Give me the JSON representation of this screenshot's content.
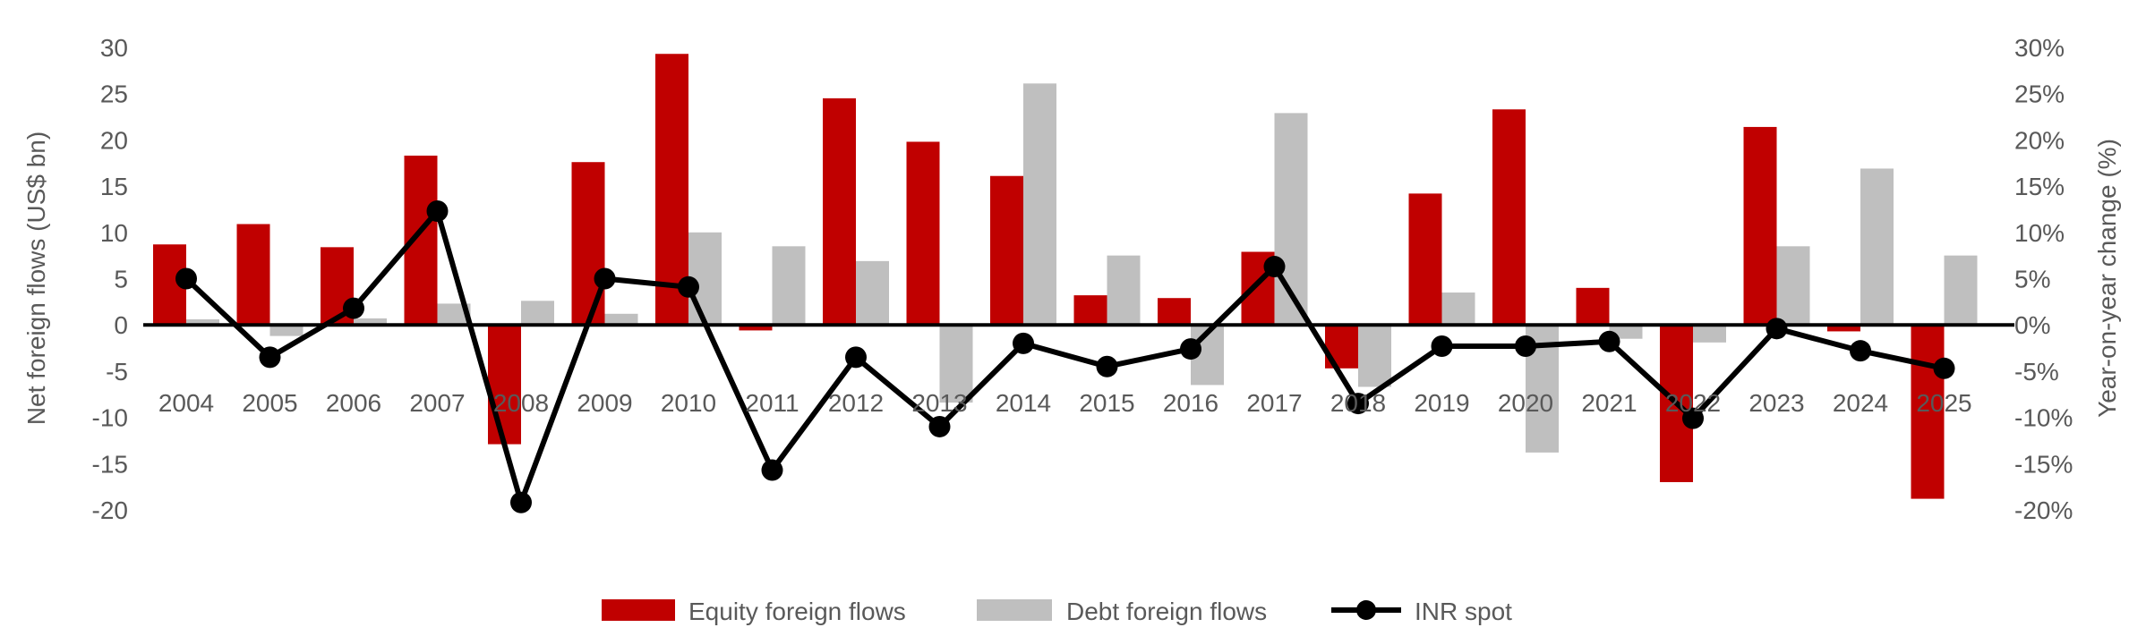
{
  "chart_data": {
    "type": "bar+line",
    "categories": [
      "2004",
      "2005",
      "2006",
      "2007",
      "2008",
      "2009",
      "2010",
      "2011",
      "2012",
      "2013",
      "2014",
      "2015",
      "2016",
      "2017",
      "2018",
      "2019",
      "2020",
      "2021",
      "2022",
      "2023",
      "2024",
      "2025"
    ],
    "series": [
      {
        "name": "Equity foreign flows",
        "type": "bar",
        "axis": "left",
        "color": "#c00000",
        "values": [
          8.7,
          10.9,
          8.4,
          18.3,
          -12.9,
          17.6,
          29.3,
          -0.6,
          24.5,
          19.8,
          16.1,
          3.2,
          2.9,
          7.9,
          -4.7,
          14.2,
          23.3,
          4.0,
          -17.0,
          21.4,
          -0.7,
          -18.8
        ]
      },
      {
        "name": "Debt foreign flows",
        "type": "bar",
        "axis": "right-bar",
        "color": "#bfbfbf",
        "values": [
          0.6,
          -1.2,
          0.7,
          2.3,
          2.6,
          1.2,
          10.0,
          8.5,
          6.9,
          -8.4,
          26.1,
          7.5,
          -6.5,
          22.9,
          -6.7,
          3.5,
          -13.8,
          -1.5,
          -1.9,
          8.5,
          16.9,
          7.5
        ]
      },
      {
        "name": "INR spot",
        "type": "line",
        "axis": "right",
        "color": "#000000",
        "values": [
          5.0,
          -3.5,
          1.8,
          12.3,
          -19.2,
          5.0,
          4.1,
          -15.7,
          -3.5,
          -11.0,
          -2.0,
          -4.5,
          -2.6,
          6.3,
          -8.5,
          -2.3,
          -2.3,
          -1.8,
          -10.1,
          -0.4,
          -2.8,
          -4.7
        ]
      }
    ],
    "ylabel": "Net foreign flows (US$ bn)",
    "ylabel_right": "Year-on-year change (%)",
    "ylim": [
      -20,
      30
    ],
    "ylim_right": [
      -20,
      30
    ],
    "yticks": [
      "-20",
      "-15",
      "-10",
      "-5",
      "0",
      "5",
      "10",
      "15",
      "20",
      "25",
      "30"
    ],
    "yticks_right": [
      "-20%",
      "-15%",
      "-10%",
      "-5%",
      "0%",
      "5%",
      "10%",
      "15%",
      "20%",
      "25%",
      "30%"
    ],
    "grid": false,
    "legend": "bottom"
  }
}
